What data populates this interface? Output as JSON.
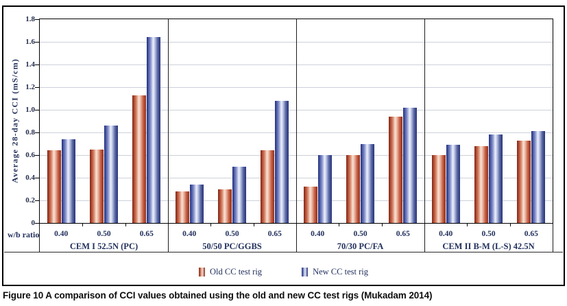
{
  "figure": {
    "caption_label": "Figure 10",
    "caption_text": " A comparison of CCI values obtained using the old and new CC test rigs (Mukadam 2014)"
  },
  "chart_data": {
    "type": "bar",
    "title": "",
    "ylabel": "Average 28-day CCI (mS/cm)",
    "xlabel_prefix": "w/b ratio",
    "ylim": [
      0,
      1.8
    ],
    "yticks": [
      "0",
      "0.2",
      "0.4",
      "0.6",
      "0.8",
      "1.0",
      "1.2",
      "1.4",
      "1.6",
      "1.8"
    ],
    "grid": "horizontal-only",
    "legend_position": "bottom-center",
    "group_labels": [
      "CEM I 52.5N (PC)",
      "50/50 PC/GGBS",
      "70/30 PC/FA",
      "CEM II B-M (L-S) 42.5N"
    ],
    "wb_ratios": [
      "0.40",
      "0.50",
      "0.65"
    ],
    "series": [
      {
        "name": "Old CC test rig",
        "color": "#A8462F",
        "color_dark": "#7E2817",
        "color_light": "#F8E2D7",
        "values": [
          [
            0.64,
            0.65,
            1.13
          ],
          [
            0.28,
            0.3,
            0.64
          ],
          [
            0.32,
            0.6,
            0.94
          ],
          [
            0.6,
            0.68,
            0.73
          ]
        ]
      },
      {
        "name": "New CC test rig",
        "color": "#3A488F",
        "color_dark": "#222E76",
        "color_light": "#EEF1FB",
        "values": [
          [
            0.74,
            0.86,
            1.64
          ],
          [
            0.34,
            0.5,
            1.08
          ],
          [
            0.6,
            0.7,
            1.02
          ],
          [
            0.69,
            0.78,
            0.81
          ]
        ]
      }
    ],
    "text_color": "#22305C",
    "gridline_color": "#CCD1D9"
  }
}
